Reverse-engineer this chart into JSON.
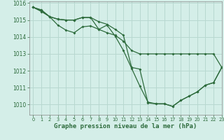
{
  "title": "Graphe pression niveau de la mer (hPa)",
  "background_color": "#d4eee8",
  "grid_color": "#b8d8d0",
  "line_color": "#2d6b3c",
  "xlim": [
    -0.5,
    23
  ],
  "ylim": [
    1009.4,
    1016.1
  ],
  "yticks": [
    1010,
    1011,
    1012,
    1013,
    1014,
    1015,
    1016
  ],
  "xticks": [
    0,
    1,
    2,
    3,
    4,
    5,
    6,
    7,
    8,
    9,
    10,
    11,
    12,
    13,
    14,
    15,
    16,
    17,
    18,
    19,
    20,
    21,
    22,
    23
  ],
  "line1_x": [
    0,
    1,
    2,
    3,
    4,
    5,
    6,
    7,
    8,
    9,
    10,
    11,
    12,
    13,
    14,
    15,
    16,
    17,
    18,
    19,
    20,
    21,
    22,
    23
  ],
  "line1_y": [
    1015.75,
    1015.6,
    1015.2,
    1015.05,
    1015.0,
    1015.0,
    1015.15,
    1015.15,
    1014.45,
    1014.7,
    1014.05,
    1013.2,
    1012.15,
    1011.1,
    1010.15,
    1010.05,
    1010.05,
    1009.9,
    1010.25,
    1010.5,
    1010.75,
    1011.15,
    1011.3,
    1012.2
  ],
  "line2_x": [
    0,
    1,
    2,
    3,
    4,
    5,
    6,
    7,
    8,
    9,
    10,
    11,
    12,
    13,
    14,
    15,
    16,
    17,
    18,
    19,
    20,
    21,
    22,
    23
  ],
  "line2_y": [
    1015.75,
    1015.5,
    1015.2,
    1015.05,
    1015.0,
    1015.0,
    1015.15,
    1015.15,
    1014.9,
    1014.75,
    1014.45,
    1014.1,
    1012.2,
    1012.1,
    1010.1,
    1010.05,
    1010.05,
    1009.9,
    1010.25,
    1010.5,
    1010.75,
    1011.15,
    1011.3,
    1012.2
  ],
  "line3_x": [
    0,
    1,
    2,
    3,
    4,
    5,
    6,
    7,
    8,
    9,
    10,
    11,
    12,
    13,
    14,
    15,
    16,
    17,
    18,
    19,
    20,
    21,
    22,
    23
  ],
  "line3_y": [
    1015.75,
    1015.55,
    1015.2,
    1014.7,
    1014.4,
    1014.25,
    1014.6,
    1014.65,
    1014.45,
    1014.25,
    1014.1,
    1013.75,
    1013.2,
    1013.0,
    1013.0,
    1013.0,
    1013.0,
    1013.0,
    1013.0,
    1013.0,
    1013.0,
    1013.0,
    1013.0,
    1012.2
  ]
}
